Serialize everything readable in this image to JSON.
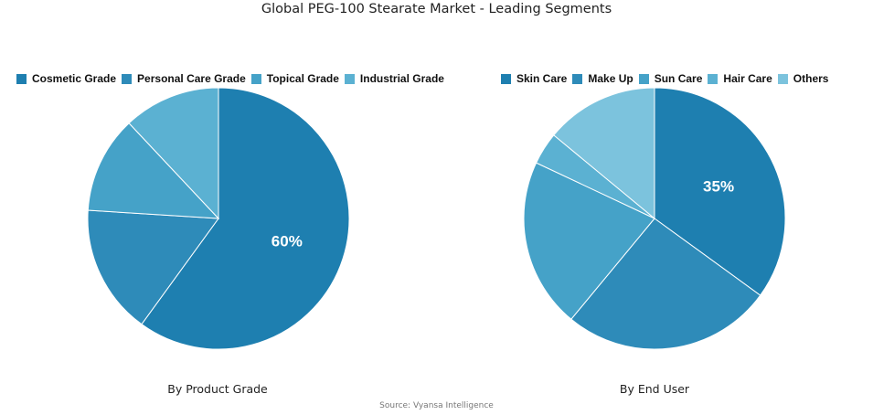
{
  "title": "Global PEG-100 Stearate Market - Leading Segments",
  "source": "Source: Vyansa Intelligence",
  "chart_data": [
    {
      "type": "pie",
      "subtitle": "By Product Grade",
      "labels": [
        "Cosmetic Grade",
        "Personal Care Grade",
        "Topical Grade",
        "Industrial Grade"
      ],
      "values": [
        60,
        16,
        12,
        12
      ],
      "colors": [
        "#1e7fb0",
        "#2e8bb9",
        "#45a2c8",
        "#5bb1d2"
      ],
      "data_labels": [
        "60%",
        "",
        "",
        ""
      ],
      "legend": "top"
    },
    {
      "type": "pie",
      "subtitle": "By End User",
      "labels": [
        "Skin Care",
        "Make Up",
        "Sun Care",
        "Hair Care",
        "Others"
      ],
      "values": [
        35,
        26,
        21,
        4,
        14
      ],
      "colors": [
        "#1e7fb0",
        "#2e8bb9",
        "#45a2c8",
        "#5bb1d2",
        "#7cc3dd"
      ],
      "data_labels": [
        "35%",
        "",
        "",
        "",
        ""
      ],
      "legend": "top"
    }
  ]
}
